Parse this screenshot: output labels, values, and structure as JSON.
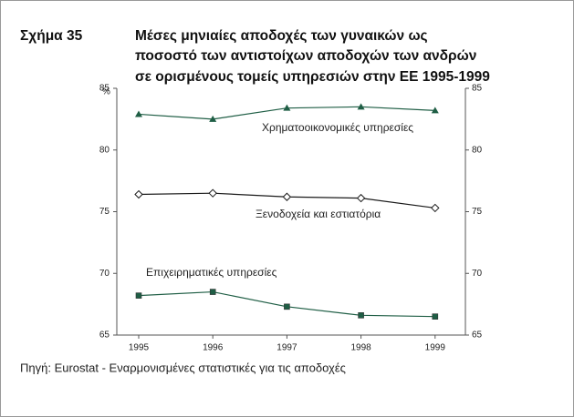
{
  "chart_data": {
    "type": "line",
    "label": "Σχήμα 35",
    "title": [
      "Μέσες μηνιαίες αποδοχές των γυναικών ως",
      "ποσοστό των αντιστοίχων αποδοχών των ανδρών",
      "σε ορισμένους τομείς υπηρεσιών στην ΕΕ 1995-1999"
    ],
    "y_unit": "%",
    "categories": [
      "1995",
      "1996",
      "1997",
      "1998",
      "1999"
    ],
    "series": [
      {
        "name": "Χρηματοοικονομικές υπηρεσίες",
        "color": "#1f5e45",
        "marker": "triangle",
        "values": [
          82.9,
          82.5,
          83.4,
          83.5,
          83.2
        ]
      },
      {
        "name": "Ξενοδοχεία και εστιατόρια",
        "color": "#1a1a1a",
        "marker": "diamond",
        "values": [
          76.4,
          76.5,
          76.2,
          76.1,
          75.3
        ]
      },
      {
        "name": "Επιχειρηματικές υπηρεσίες",
        "color": "#1f5e45",
        "marker": "square",
        "values": [
          68.2,
          68.5,
          67.3,
          66.6,
          66.5
        ]
      }
    ],
    "ylim": [
      65,
      85
    ],
    "yticks": [
      65,
      70,
      75,
      80,
      85
    ],
    "y2lim": [
      65,
      85
    ],
    "y2ticks": [
      65,
      70,
      75,
      80,
      85
    ],
    "grid": false,
    "source": "Πηγή: Eurostat - Εναρμονισμένες στατιστικές για τις αποδοχές"
  }
}
